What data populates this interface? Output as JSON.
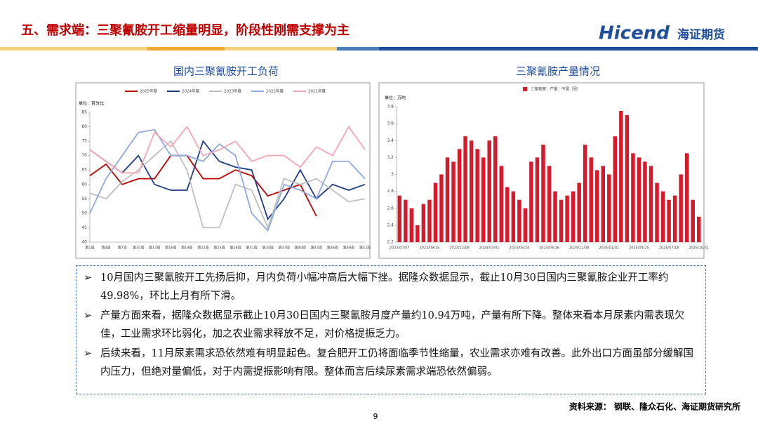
{
  "header": {
    "title": "五、需求端：三聚氰胺开工缩量明显，阶段性刚需支撑为主",
    "logo": "Hicend",
    "logo_cn": "海证期货"
  },
  "chart_data": [
    {
      "type": "line",
      "title": "国内三聚氰胺开工负荷",
      "unit": "单位：百分比",
      "categories": [
        "第1周",
        "第4周",
        "第7周",
        "第10周",
        "第13周",
        "第16周",
        "第19周",
        "第22周",
        "第25周",
        "第28周",
        "第31周",
        "第34周",
        "第37周",
        "第40周",
        "第43周",
        "第46周",
        "第49周",
        "第52周"
      ],
      "series": [
        {
          "name": "2025年度",
          "color": "#c00000",
          "values": [
            63,
            67,
            60,
            62,
            62,
            70,
            70,
            62,
            62,
            65,
            63,
            56,
            58,
            60,
            49,
            null,
            null,
            null
          ]
        },
        {
          "name": "2024年度",
          "color": "#1f3c88",
          "values": [
            72,
            68,
            64,
            70,
            60,
            58,
            58,
            75,
            68,
            66,
            65,
            48,
            55,
            65,
            55,
            60,
            58,
            60
          ]
        },
        {
          "name": "2023年度",
          "color": "#bfbfbf",
          "values": [
            57,
            55,
            61,
            65,
            70,
            75,
            65,
            45,
            45,
            60,
            58,
            45,
            62,
            60,
            62,
            58,
            54,
            55
          ]
        },
        {
          "name": "2022年度",
          "color": "#8eaadb",
          "values": [
            50,
            62,
            70,
            78,
            79,
            70,
            70,
            68,
            74,
            70,
            50,
            44,
            60,
            58,
            55,
            68,
            68,
            62
          ]
        },
        {
          "name": "2021年度",
          "color": "#f4a6b4",
          "values": [
            72,
            68,
            64,
            64,
            78,
            73,
            80,
            70,
            72,
            75,
            68,
            70,
            70,
            66,
            73,
            70,
            80,
            72
          ]
        }
      ],
      "ylim": [
        40,
        85
      ],
      "yticks": [
        40,
        45,
        50,
        55,
        60,
        65,
        70,
        75,
        80,
        85
      ]
    },
    {
      "type": "bar",
      "title": "三聚氰胺产量情况",
      "unit": "单位：万吨",
      "categories": [
        "2023/07/07",
        null,
        null,
        null,
        null,
        "2023/09/15",
        null,
        null,
        null,
        null,
        "2023/12/08",
        null,
        null,
        null,
        null,
        "2024/03/01",
        null,
        null,
        null,
        null,
        "2024/05/24",
        null,
        null,
        null,
        null,
        "2024/08/16",
        null,
        null,
        null,
        null,
        "2024/11/08",
        null,
        null,
        null,
        null,
        "2025/01/31",
        null,
        null,
        null,
        null,
        "2025/04/25",
        null,
        null,
        null,
        null,
        "2025/07/18",
        null,
        null,
        null,
        null,
        "2025/10/31"
      ],
      "series": [
        {
          "name": "三聚氰胺：产量：中国（周）",
          "color": "#d7192a",
          "values": [
            2.75,
            2.7,
            2.6,
            2.4,
            2.65,
            2.7,
            2.9,
            3.0,
            3.2,
            3.15,
            3.3,
            3.45,
            3.4,
            3.3,
            3.2,
            3.4,
            3.45,
            3.1,
            2.85,
            2.8,
            2.7,
            2.6,
            3.15,
            3.2,
            3.35,
            3.1,
            2.8,
            2.7,
            2.75,
            2.8,
            2.9,
            3.35,
            3.2,
            3.05,
            3.1,
            3.0,
            3.45,
            3.75,
            3.7,
            3.25,
            3.2,
            3.15,
            3.1,
            2.9,
            2.8,
            2.7,
            2.75,
            3.0,
            3.25,
            2.7,
            2.5
          ]
        }
      ],
      "ylim": [
        2.2,
        3.8
      ],
      "yticks": [
        2.2,
        2.4,
        2.6,
        2.8,
        3,
        3.2,
        3.4,
        3.6,
        3.8
      ]
    }
  ],
  "bullets": [
    "10月国内三聚氰胺开工先扬后抑，月内负荷小幅冲高后大幅下挫。据隆众数据显示，截止10月30日国内三聚氰胺企业开工率约49.98%，环比上月有所下滑。",
    "产量方面来看，据隆众数据显示截止10月30日国内三聚氰胺月度产量约10.94万吨，产量有所下降。整体来看本月尿素内需表现欠佳，工业需求环比弱化，加之农业需求释放不足，对价格提振乏力。",
    "后续来看，11月尿素需求恐依然难有明显起色。复合肥开工仍将面临季节性缩量，农业需求亦难有改善。此外出口方面虽部分缓解国内压力，但绝对量偏低，对于内需提振影响有限。整体而言后续尿素需求端恐依然偏弱。"
  ],
  "source": "资料来源：  钢联、隆众石化、海证期货研究所",
  "page_number": "9"
}
